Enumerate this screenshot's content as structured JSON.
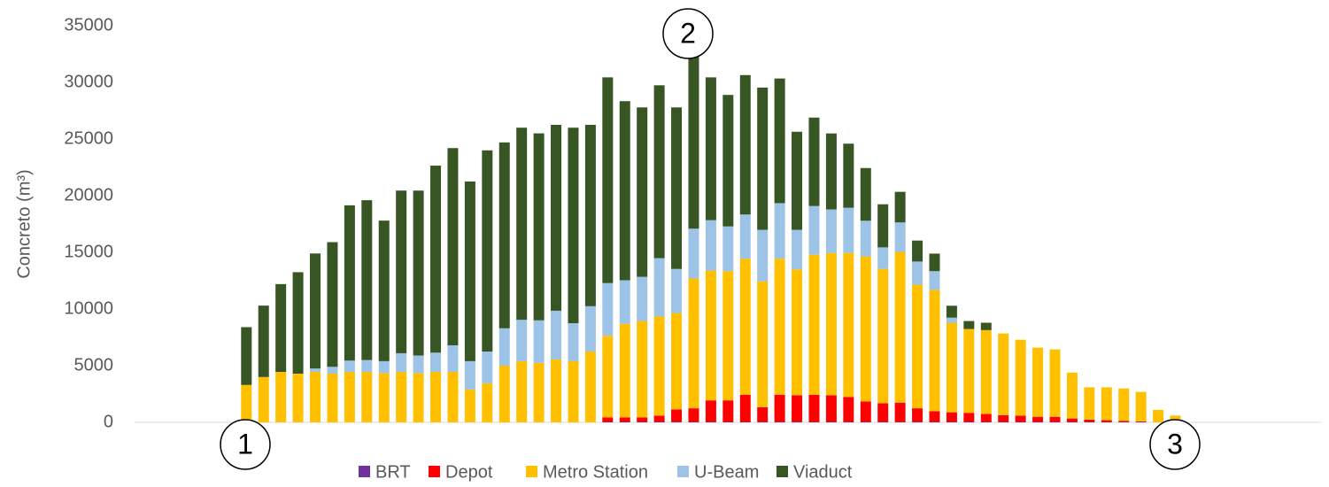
{
  "chart_data": {
    "type": "stacked_bar",
    "y_label": "Concreto (m³)",
    "categories": [
      null,
      null,
      null,
      null,
      null,
      null,
      null,
      null,
      null,
      null,
      null,
      null,
      null,
      null,
      null,
      null,
      null,
      null,
      null,
      null,
      null,
      null,
      null,
      null,
      null,
      null,
      null,
      null,
      null,
      null,
      null,
      null,
      null,
      null,
      null,
      null,
      null,
      null,
      null,
      null,
      null,
      null,
      null,
      null,
      null,
      null,
      null,
      null,
      null,
      null,
      null,
      null,
      null,
      null,
      null,
      null,
      null,
      null,
      null,
      null,
      null,
      null,
      null,
      null,
      null,
      null,
      null,
      null,
      null
    ],
    "series": [
      {
        "name": "BRT",
        "color": "#7030a0",
        "values": [
          null,
          null,
          null,
          null,
          null,
          null,
          0,
          0,
          0,
          0,
          0,
          0,
          0,
          0,
          0,
          0,
          0,
          0,
          0,
          0,
          0,
          0,
          0,
          0,
          0,
          0,
          0,
          40,
          40,
          40,
          40,
          40,
          40,
          40,
          40,
          40,
          40,
          40,
          40,
          40,
          40,
          40,
          40,
          40,
          40,
          40,
          40,
          40,
          40,
          40,
          40,
          40,
          40,
          40,
          40,
          40,
          40,
          40,
          40,
          0,
          0,
          null,
          null,
          null,
          null,
          null,
          null,
          null,
          null
        ]
      },
      {
        "name": "Depot",
        "color": "#ff0000",
        "values": [
          null,
          null,
          null,
          null,
          null,
          null,
          0,
          0,
          0,
          0,
          0,
          0,
          0,
          0,
          0,
          0,
          0,
          0,
          0,
          0,
          0,
          0,
          0,
          0,
          0,
          0,
          0,
          400,
          400,
          400,
          550,
          1100,
          1200,
          1900,
          1900,
          2400,
          1300,
          2400,
          2350,
          2400,
          2350,
          2200,
          1800,
          1650,
          1700,
          1200,
          950,
          850,
          800,
          700,
          600,
          550,
          450,
          450,
          300,
          200,
          150,
          100,
          50,
          0,
          0,
          null,
          null,
          null,
          null,
          null,
          null,
          null,
          null
        ]
      },
      {
        "name": "Metro Station",
        "color": "#ffc000",
        "values": [
          null,
          null,
          null,
          null,
          null,
          null,
          3300,
          4000,
          4450,
          4300,
          4450,
          4300,
          4450,
          4450,
          4350,
          4450,
          4350,
          4450,
          4450,
          2900,
          3450,
          5000,
          5400,
          5250,
          5550,
          5400,
          6250,
          7200,
          8250,
          8500,
          8750,
          8500,
          11450,
          11450,
          11400,
          12000,
          11100,
          12000,
          11100,
          12350,
          12550,
          12700,
          12800,
          11850,
          13300,
          10900,
          10700,
          7900,
          7400,
          7400,
          7200,
          6700,
          6100,
          5950,
          4050,
          2850,
          2900,
          2850,
          2600,
          1100,
          600,
          null,
          null,
          null,
          null,
          null,
          null,
          null,
          null
        ]
      },
      {
        "name": "U-Beam",
        "color": "#9dc3e6",
        "values": [
          null,
          null,
          null,
          null,
          null,
          null,
          0,
          0,
          0,
          0,
          300,
          600,
          1000,
          1050,
          1050,
          1650,
          1550,
          1700,
          2350,
          2500,
          2800,
          3300,
          3650,
          3750,
          4300,
          3350,
          4000,
          4650,
          3850,
          3900,
          5150,
          3900,
          4400,
          4450,
          3950,
          3900,
          4550,
          4900,
          3500,
          4300,
          3850,
          4000,
          3150,
          1900,
          2600,
          2050,
          1650,
          450,
          0,
          0,
          0,
          0,
          0,
          0,
          0,
          0,
          0,
          0,
          0,
          0,
          0,
          null,
          null,
          null,
          null,
          null,
          null,
          null,
          null
        ]
      },
      {
        "name": "Viaduct",
        "color": "#375623",
        "values": [
          null,
          null,
          null,
          null,
          null,
          null,
          5100,
          6300,
          7750,
          8950,
          10150,
          11000,
          13700,
          14100,
          12400,
          14350,
          14550,
          16500,
          17400,
          15850,
          17750,
          16400,
          16950,
          16500,
          16400,
          17250,
          16000,
          18150,
          15800,
          14950,
          15250,
          14250,
          15250,
          12600,
          11600,
          12300,
          12550,
          11000,
          8650,
          7800,
          6700,
          5650,
          4650,
          3800,
          2700,
          1850,
          1550,
          1050,
          700,
          650,
          0,
          0,
          0,
          0,
          0,
          0,
          0,
          0,
          0,
          0,
          0,
          null,
          null,
          null,
          null,
          null,
          null,
          null,
          null
        ]
      }
    ],
    "ylim": [
      0,
      35000
    ],
    "yticks": [
      0,
      5000,
      10000,
      15000,
      20000,
      25000,
      30000,
      35000
    ],
    "grid": false,
    "legend": "bottom",
    "annotations": [
      "1",
      "2",
      "3"
    ]
  }
}
